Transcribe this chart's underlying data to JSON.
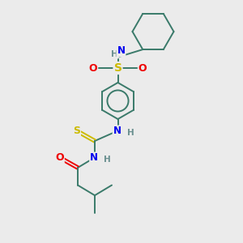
{
  "bg_color": "#ebebeb",
  "atom_colors": {
    "C": "#3a7a6a",
    "N": "#0000ee",
    "O": "#ee0000",
    "S": "#ccbb00",
    "H": "#6a9090"
  },
  "bond_color": "#3a7a6a",
  "bond_width": 1.4,
  "fig_w": 3.0,
  "fig_h": 3.0,
  "dpi": 100
}
